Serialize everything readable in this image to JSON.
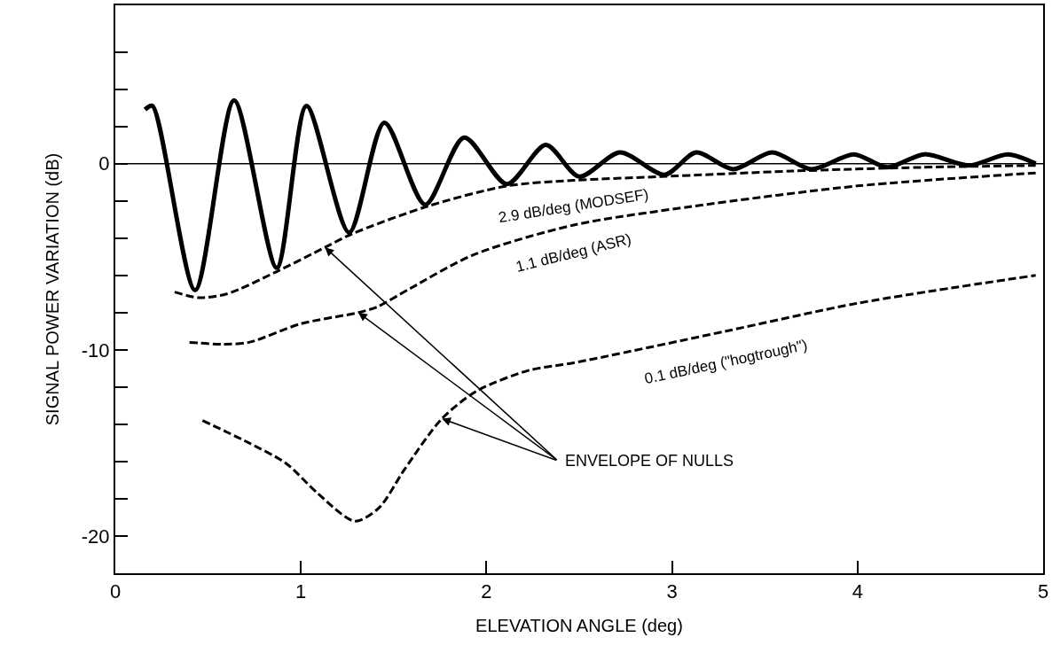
{
  "chart_data": {
    "type": "line",
    "xlabel": "ELEVATION ANGLE (deg)",
    "ylabel": "SIGNAL POWER VARIATION (dB)",
    "xlim": [
      0,
      5
    ],
    "xticks": [
      0,
      1,
      2,
      3,
      4,
      5
    ],
    "ylim": [
      -22,
      8.5
    ],
    "yticks": [
      -20,
      {
        "value": -18,
        "label": null
      },
      {
        "value": -16,
        "label": null
      },
      {
        "value": -14,
        "label": null
      },
      {
        "value": -12,
        "label": null
      },
      -10,
      {
        "value": -8,
        "label": null
      },
      {
        "value": -6,
        "label": null
      },
      {
        "value": -4,
        "label": null
      },
      {
        "value": -2,
        "label": null
      },
      0,
      {
        "value": 2,
        "label": null
      },
      {
        "value": 4,
        "label": null
      },
      {
        "value": 6,
        "label": null
      }
    ],
    "legend": false,
    "marker": "none",
    "ref_lines": [
      {
        "axis": "y",
        "value": 0,
        "color": "#000000",
        "line_style": "solid"
      }
    ],
    "series": [
      {
        "color": "#000000",
        "line_style": "solid",
        "x": [
          0.16,
          0.2,
          0.43,
          0.64,
          0.87,
          1.03,
          1.26,
          1.45,
          1.67,
          1.88,
          2.11,
          2.32,
          2.5,
          2.72,
          2.96,
          3.13,
          3.33,
          3.54,
          3.75,
          3.98,
          4.16,
          4.36,
          4.6,
          4.81,
          4.96
        ],
        "values": [
          2.9,
          3.1,
          -6.8,
          3.4,
          -5.6,
          3.1,
          -3.7,
          2.2,
          -2.2,
          1.4,
          -1.1,
          1.0,
          -0.7,
          0.6,
          -0.6,
          0.6,
          -0.3,
          0.6,
          -0.3,
          0.5,
          -0.2,
          0.5,
          -0.1,
          0.5,
          0.0
        ]
      },
      {
        "name": "2.9 dB/deg (MODSEF)",
        "color": "#000000",
        "line_style": "dashed",
        "x": [
          0.32,
          0.45,
          0.6,
          0.87,
          1.13,
          1.27,
          1.68,
          2.11,
          2.47,
          2.94,
          3.65,
          4.35,
          4.96
        ],
        "values": [
          -6.9,
          -7.2,
          -7.0,
          -5.8,
          -4.5,
          -3.8,
          -2.3,
          -1.2,
          -0.9,
          -0.7,
          -0.4,
          -0.2,
          -0.1
        ]
      },
      {
        "name": "1.1 dB/deg (ASR)",
        "color": "#000000",
        "line_style": "dashed",
        "x": [
          0.4,
          0.58,
          0.72,
          1.0,
          1.31,
          1.41,
          1.59,
          1.93,
          2.47,
          3.11,
          4.0,
          4.96
        ],
        "values": [
          -9.6,
          -9.7,
          -9.6,
          -8.6,
          -8.0,
          -7.7,
          -6.7,
          -4.9,
          -3.3,
          -2.3,
          -1.2,
          -0.5
        ]
      },
      {
        "name": "0.1 dB/deg (\"hogtrough\")",
        "color": "#000000",
        "line_style": "dashed",
        "x": [
          0.47,
          0.7,
          0.92,
          1.09,
          1.29,
          1.42,
          1.56,
          1.76,
          1.95,
          2.23,
          2.47,
          3.29,
          4.0,
          4.96
        ],
        "values": [
          -13.8,
          -14.9,
          -16.1,
          -17.7,
          -19.2,
          -18.5,
          -16.4,
          -13.7,
          -12.2,
          -11.1,
          -10.7,
          -9.0,
          -7.5,
          -6.0
        ]
      }
    ],
    "annotations": [
      {
        "text": "ENVELOPE OF NULLS",
        "x": 1.13,
        "y": -4.5
      }
    ]
  }
}
